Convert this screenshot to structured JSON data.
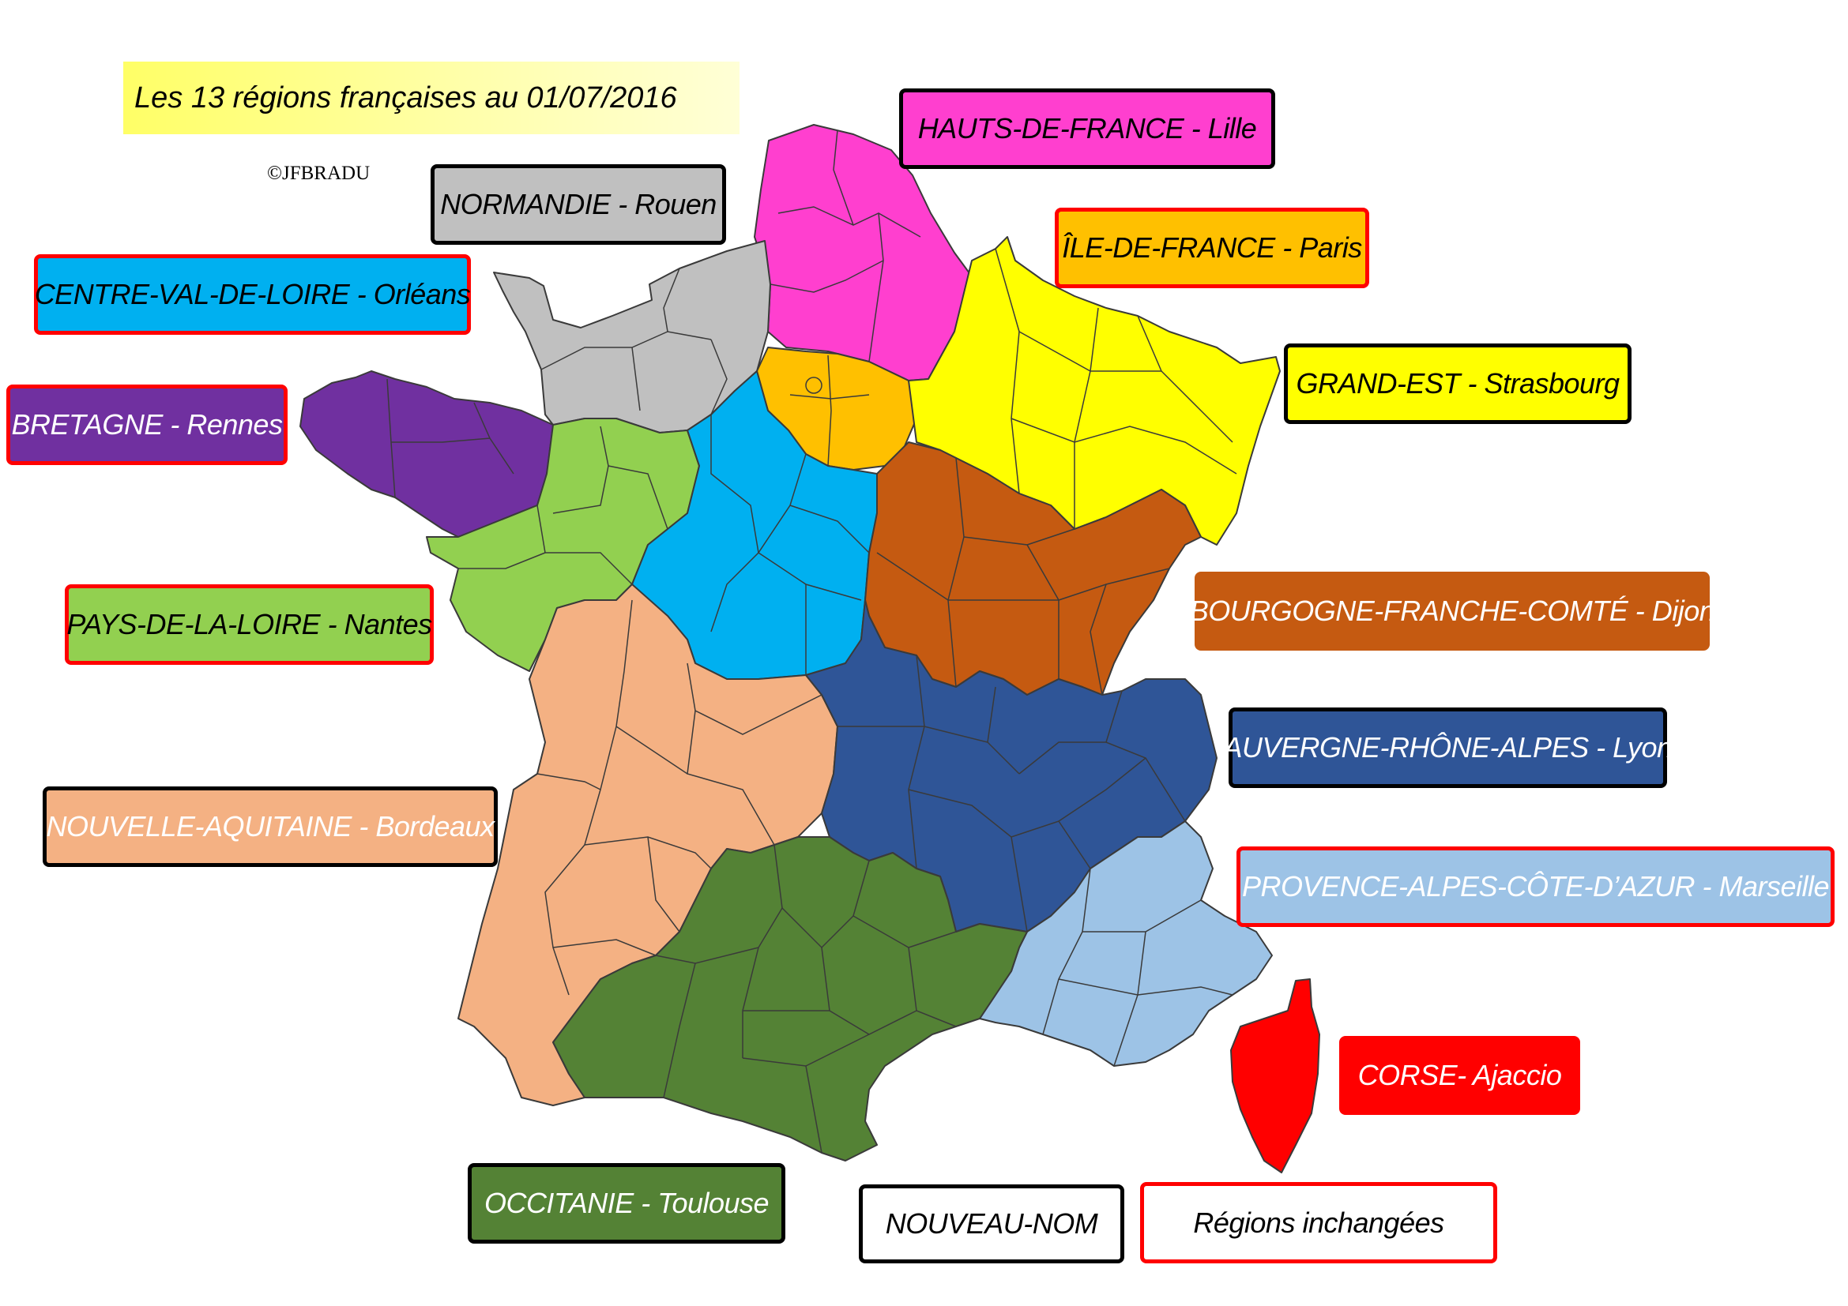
{
  "title": "Les 13 régions françaises au 01/07/2016",
  "credit": "©JFBRADU",
  "regions": [
    {
      "label": "HAUTS-DE-FRANCE - Lille",
      "color": "#ff3fcf",
      "text_color": "#000000",
      "status": "new-name"
    },
    {
      "label": "NORMANDIE - Rouen",
      "color": "#c0c0c0",
      "text_color": "#000000",
      "status": "new-name"
    },
    {
      "label": "ÎLE-DE-FRANCE - Paris",
      "color": "#ffc000",
      "text_color": "#000000",
      "status": "unchanged"
    },
    {
      "label": "CENTRE-VAL-DE-LOIRE - Orléans",
      "color": "#00b0f0",
      "text_color": "#000000",
      "status": "unchanged"
    },
    {
      "label": "GRAND-EST - Strasbourg",
      "color": "#ffff00",
      "text_color": "#000000",
      "status": "new-name"
    },
    {
      "label": "BRETAGNE - Rennes",
      "color": "#7030a0",
      "text_color": "#ffffff",
      "status": "unchanged"
    },
    {
      "label": "PAYS-DE-LA-LOIRE - Nantes",
      "color": "#92d050",
      "text_color": "#000000",
      "status": "unchanged"
    },
    {
      "label": "BOURGOGNE-FRANCHE-COMTÉ - Dijon",
      "color": "#c55a11",
      "text_color": "#ffffff",
      "status": "new-name"
    },
    {
      "label": "AUVERGNE-RHÔNE-ALPES - Lyon",
      "color": "#2f5597",
      "text_color": "#ffffff",
      "status": "new-name"
    },
    {
      "label": "NOUVELLE-AQUITAINE - Bordeaux",
      "color": "#f4b183",
      "text_color": "#ffffff",
      "status": "new-name"
    },
    {
      "label": "PROVENCE-ALPES-CÔTE-D’AZUR - Marseille",
      "color": "#9dc3e6",
      "text_color": "#ffffff",
      "status": "unchanged"
    },
    {
      "label": "CORSE- Ajaccio",
      "color": "#ff0000",
      "text_color": "#ffffff",
      "status": "unchanged"
    },
    {
      "label": "OCCITANIE - Toulouse",
      "color": "#548235",
      "text_color": "#ffffff",
      "status": "new-name"
    }
  ],
  "legend": {
    "new_name": "NOUVEAU-NOM",
    "unchanged": "Régions inchangées",
    "new_name_border": "#000000",
    "unchanged_border": "#ff0000"
  }
}
